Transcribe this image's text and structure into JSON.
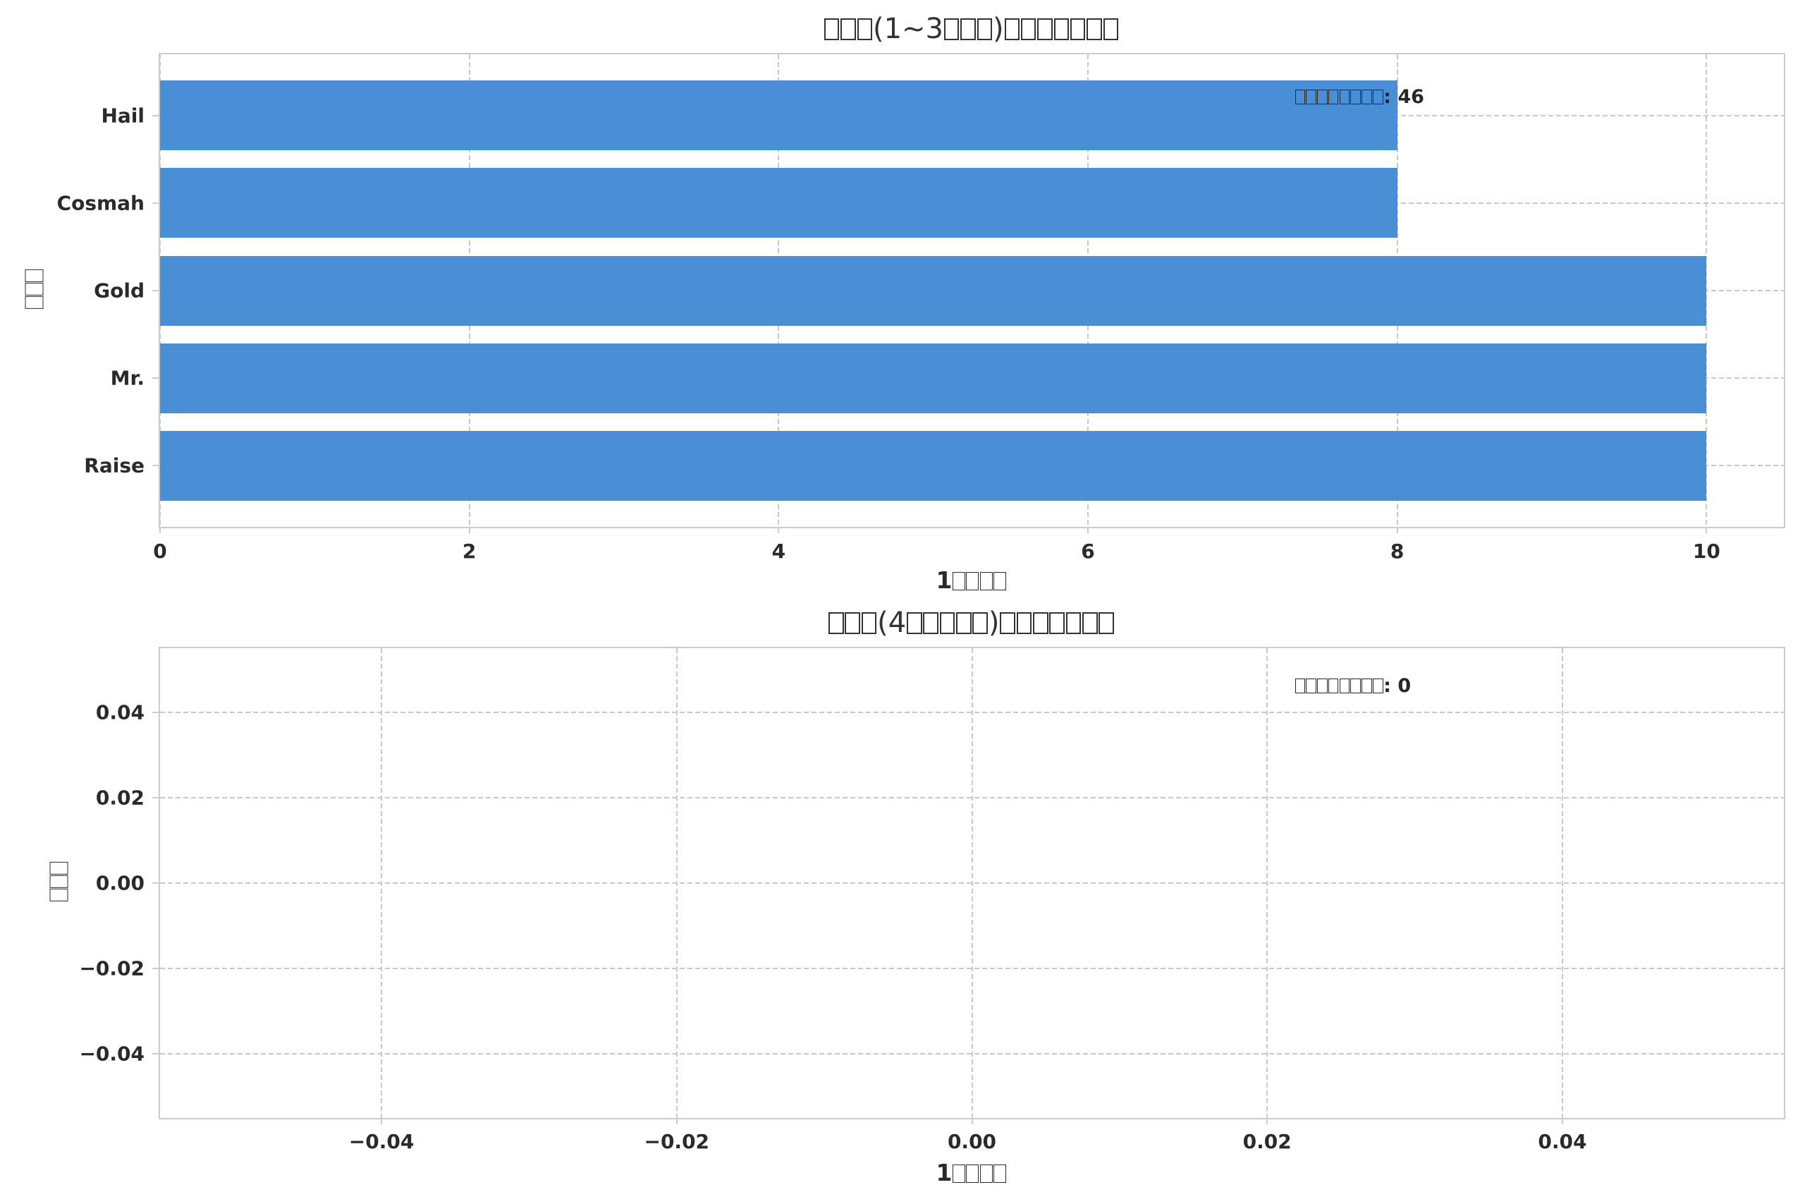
{
  "figure": {
    "background": "#ffffff"
  },
  "colors": {
    "bar": "#4a8ed6",
    "spine": "#cccccc",
    "grid": "#c9c9c9",
    "text": "#2a2a2a",
    "title": "#333333"
  },
  "chart_data": [
    {
      "type": "bar",
      "orientation": "horizontal",
      "title": "□□□(1~3□□□)□□□□□□□",
      "xlabel": "1□□□□",
      "ylabel": "□□□",
      "categories": [
        "Hail",
        "Cosmah",
        "Gold",
        "Mr.",
        "Raise"
      ],
      "values": [
        8,
        8,
        10,
        10,
        10
      ],
      "xlim": [
        0,
        10.5
      ],
      "xticks": [
        0,
        2,
        4,
        6,
        8,
        10
      ],
      "xtick_labels": [
        "0",
        "2",
        "4",
        "6",
        "8",
        "10"
      ],
      "annotation": "□□□□□□□□: 46",
      "grid": true,
      "legend": false
    },
    {
      "type": "bar",
      "orientation": "horizontal",
      "title": "□□□(4□□□□□)□□□□□□□",
      "xlabel": "1□□□□",
      "ylabel": "□□□",
      "categories": [],
      "values": [],
      "xlim": [
        -0.055,
        0.055
      ],
      "ylim": [
        -0.055,
        0.055
      ],
      "xticks": [
        -0.04,
        -0.02,
        0,
        0.02,
        0.04
      ],
      "xtick_labels": [
        "−0.04",
        "−0.02",
        "0.00",
        "0.02",
        "0.04"
      ],
      "yticks": [
        0.04,
        0.02,
        0,
        -0.02,
        -0.04
      ],
      "ytick_labels": [
        "0.04",
        "0.02",
        "0.00",
        "−0.02",
        "−0.04"
      ],
      "annotation": "□□□□□□□□: 0",
      "grid": true,
      "legend": false
    }
  ]
}
